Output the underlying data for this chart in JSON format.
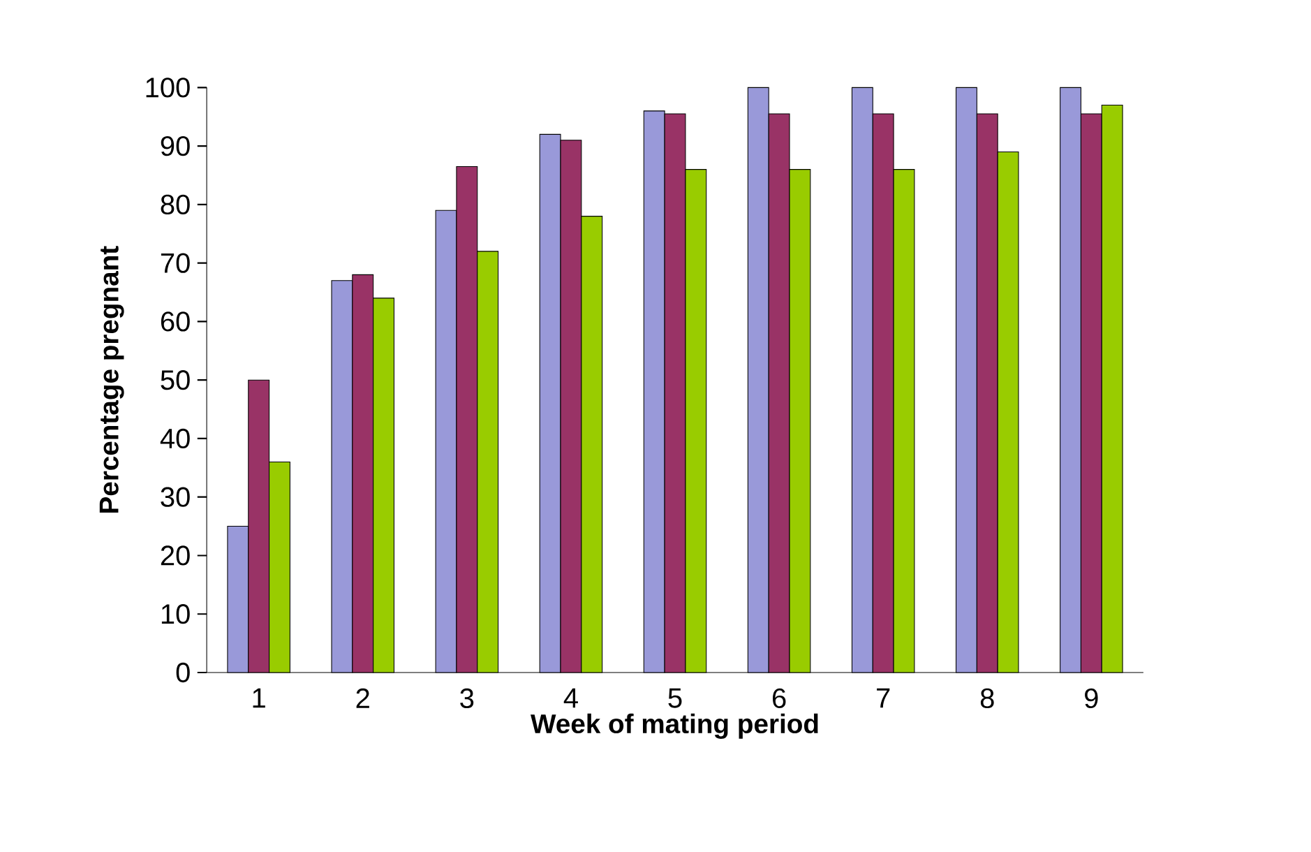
{
  "chart_data": {
    "type": "bar",
    "xlabel": "Week of mating period",
    "ylabel": "Percentage pregnant",
    "categories": [
      "1",
      "2",
      "3",
      "4",
      "5",
      "6",
      "7",
      "8",
      "9"
    ],
    "series": [
      {
        "color": "#9999d9",
        "values": [
          25,
          67,
          79,
          92,
          96,
          100,
          100,
          100,
          100
        ]
      },
      {
        "color": "#993366",
        "values": [
          50,
          68,
          86.5,
          91,
          95.5,
          95.5,
          95.5,
          95.5,
          95.5
        ]
      },
      {
        "color": "#99cc00",
        "values": [
          36,
          64,
          72,
          78,
          86,
          86,
          86,
          89,
          97
        ]
      }
    ],
    "ylim": [
      0,
      100
    ],
    "yticks": [
      0,
      10,
      20,
      30,
      40,
      50,
      60,
      70,
      80,
      90,
      100
    ]
  }
}
